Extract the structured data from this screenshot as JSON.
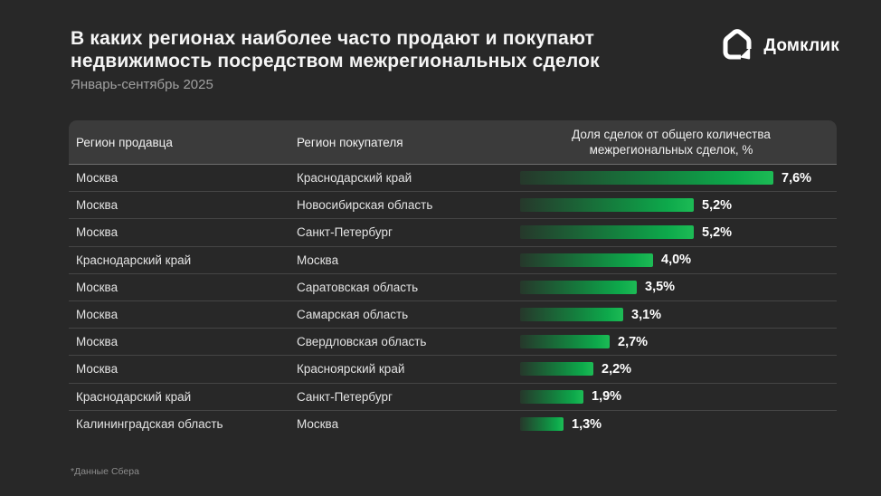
{
  "page": {
    "title_line1": "В каких регионах наиболее часто продают и покупают",
    "title_line2": "недвижимость посредством межрегиональных сделок",
    "subtitle": "Январь-сентябрь 2025",
    "footnote": "*Данные Сбера",
    "background_color": "#282828"
  },
  "logo": {
    "text": "Домклик",
    "icon": "domclick-house-icon",
    "color": "#ffffff"
  },
  "table": {
    "header_seller": "Регион продавца",
    "header_buyer": "Регион покупателя",
    "header_share": "Доля сделок от общего количества межрегиональных сделок, %"
  },
  "chart_data": {
    "type": "bar",
    "title": "В каких регионах наиболее часто продают и покупают недвижимость посредством межрегиональных сделок",
    "subtitle": "Январь-сентябрь 2025",
    "unit": "%",
    "orientation": "horizontal",
    "max_value": 7.6,
    "bar_gradient": {
      "start": "#26382b",
      "end": "#1dbb55"
    },
    "categories_note": "each bar = seller region → buyer region pair",
    "rows": [
      {
        "seller": "Москва",
        "buyer": "Краснодарский край",
        "value": 7.6,
        "label": "7,6%"
      },
      {
        "seller": "Москва",
        "buyer": "Новосибирская область",
        "value": 5.2,
        "label": "5,2%"
      },
      {
        "seller": "Москва",
        "buyer": "Санкт-Петербург",
        "value": 5.2,
        "label": "5,2%"
      },
      {
        "seller": "Краснодарский край",
        "buyer": "Москва",
        "value": 4.0,
        "label": "4,0%"
      },
      {
        "seller": "Москва",
        "buyer": "Саратовская область",
        "value": 3.5,
        "label": "3,5%"
      },
      {
        "seller": "Москва",
        "buyer": "Самарская область",
        "value": 3.1,
        "label": "3,1%"
      },
      {
        "seller": "Москва",
        "buyer": "Свердловская область",
        "value": 2.7,
        "label": "2,7%"
      },
      {
        "seller": "Москва",
        "buyer": "Красноярский край",
        "value": 2.2,
        "label": "2,2%"
      },
      {
        "seller": "Краснодарский край",
        "buyer": "Санкт-Петербург",
        "value": 1.9,
        "label": "1,9%"
      },
      {
        "seller": "Калининградская область",
        "buyer": "Москва",
        "value": 1.3,
        "label": "1,3%"
      }
    ]
  }
}
